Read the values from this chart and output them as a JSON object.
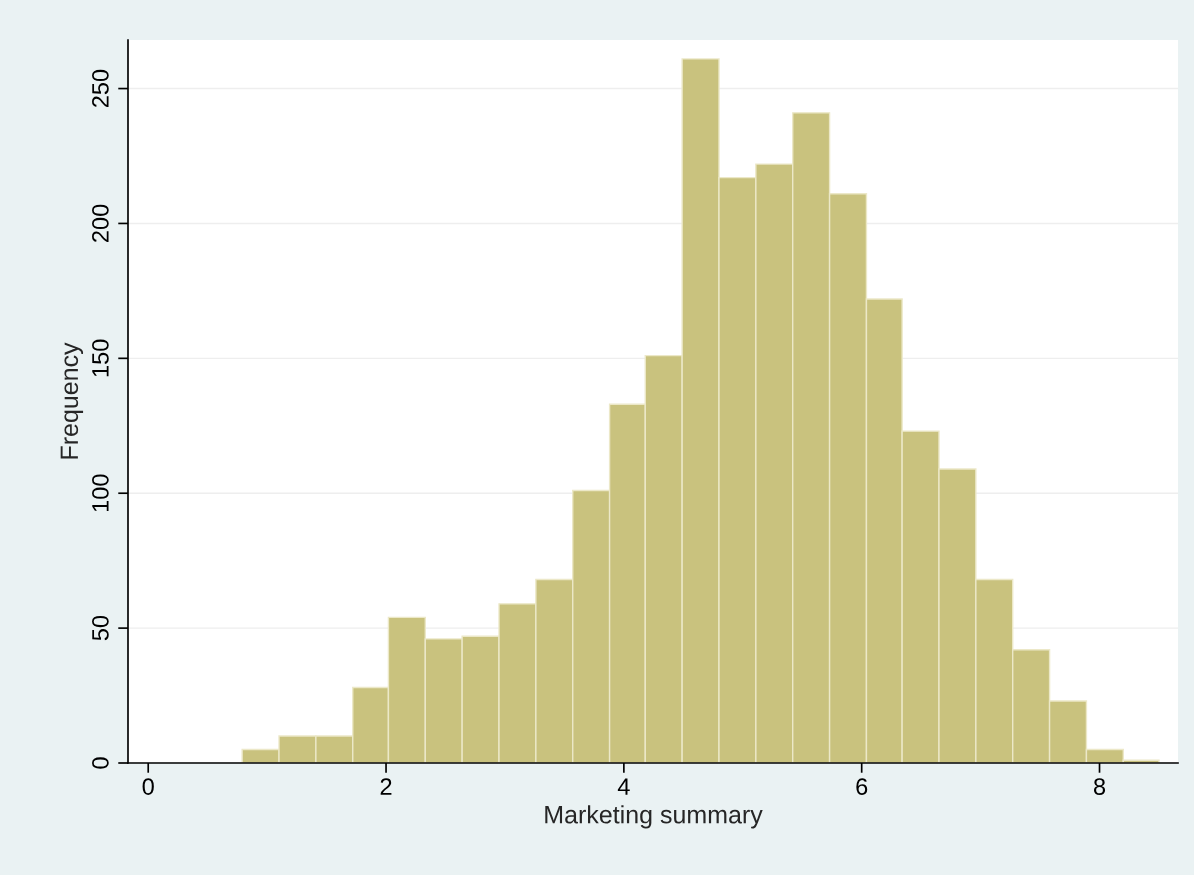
{
  "chart_data": {
    "type": "histogram",
    "xlabel": "Marketing summary",
    "ylabel": "Frequency",
    "bins": [
      0.79,
      1.1,
      1.41,
      1.72,
      2.02,
      2.33,
      2.64,
      2.95,
      3.26,
      3.57,
      3.88,
      4.18,
      4.49,
      4.8,
      5.11,
      5.42,
      5.73,
      6.04,
      6.34,
      6.65,
      6.96,
      7.27,
      7.58,
      7.89,
      8.2,
      8.5
    ],
    "values": [
      5,
      10,
      10,
      28,
      54,
      46,
      47,
      59,
      68,
      101,
      133,
      151,
      261,
      217,
      222,
      241,
      211,
      172,
      123,
      109,
      68,
      42,
      23,
      5,
      1
    ],
    "color": "#c9c27e",
    "xlim": [
      -0.17,
      8.66
    ],
    "ylim": [
      0,
      268
    ],
    "xticks": [
      0,
      2,
      4,
      6,
      8
    ],
    "yticks": [
      0,
      50,
      100,
      150,
      200,
      250
    ],
    "grid": "y"
  }
}
